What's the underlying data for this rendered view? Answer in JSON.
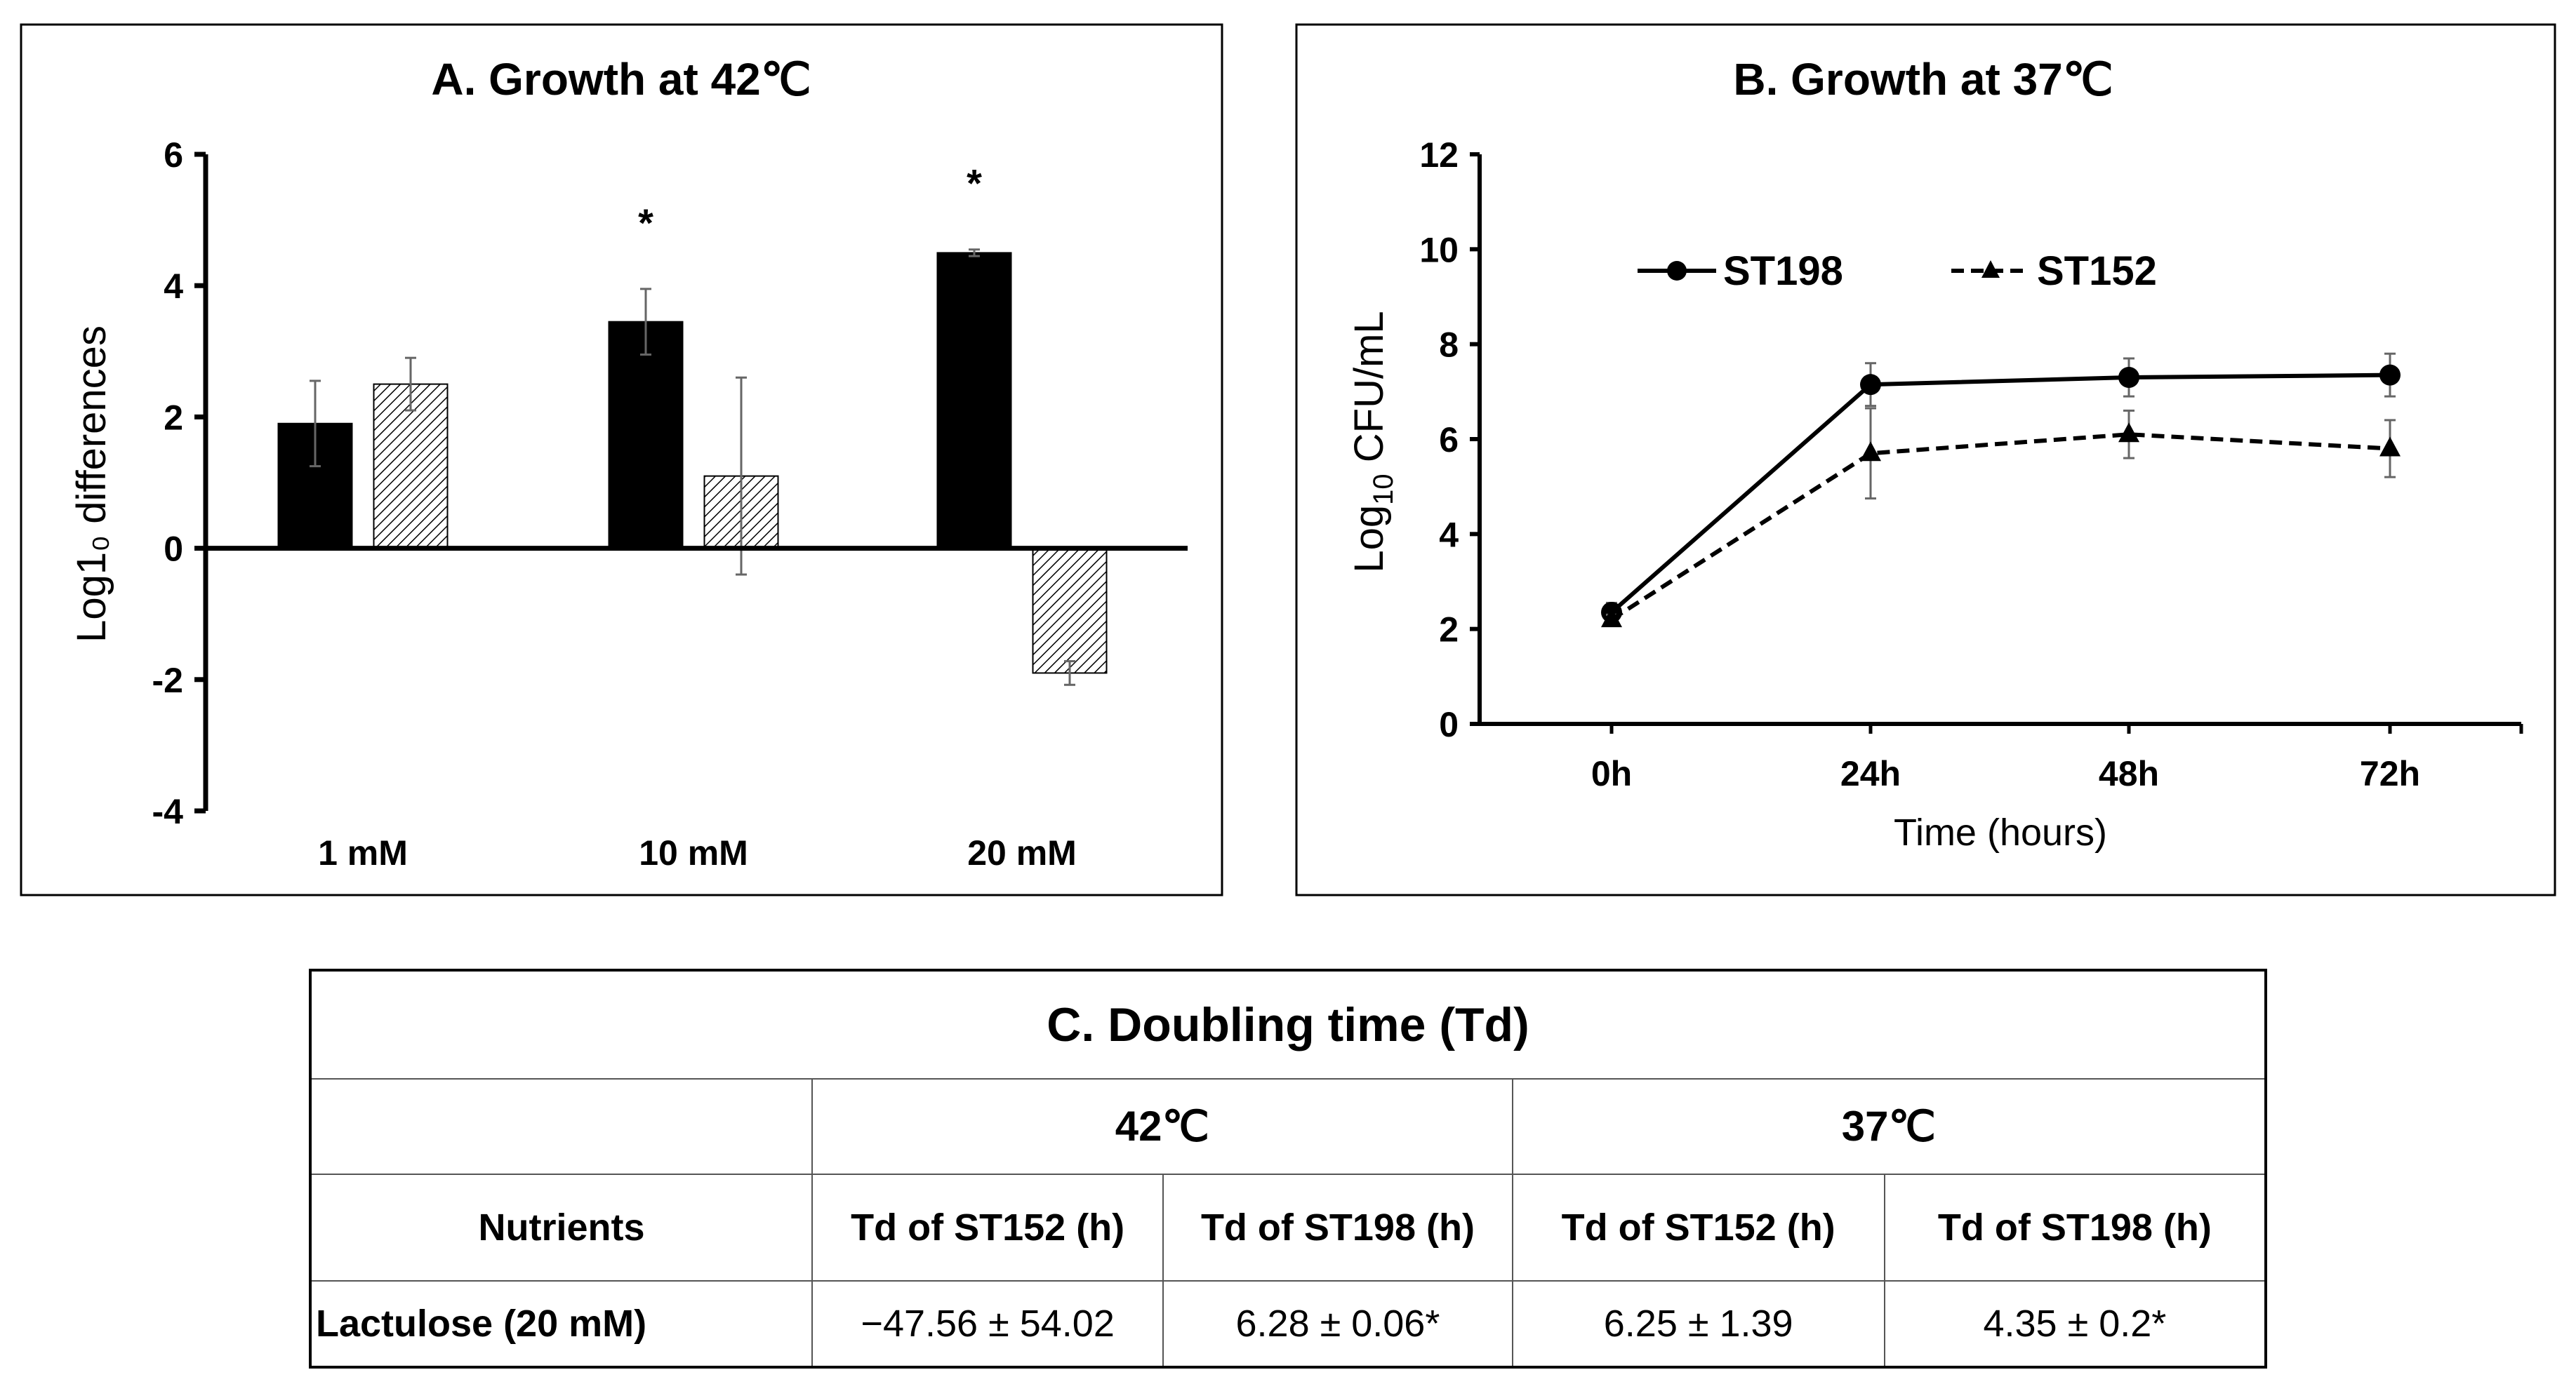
{
  "chart_data": [
    {
      "type": "bar",
      "title": "A. Growth at 42℃",
      "ylabel": "Log1₀ differences",
      "xlabel": "",
      "ylim": [
        -4,
        6
      ],
      "yticks": [
        "6",
        "4",
        "2",
        "0",
        "-2",
        "-4"
      ],
      "categories": [
        "1 mM",
        "10 mM",
        "20 mM"
      ],
      "series": [
        {
          "name": "ST198",
          "fill": "solid",
          "values": [
            1.9,
            3.45,
            4.5
          ],
          "errors": [
            0.65,
            0.5,
            0.05
          ]
        },
        {
          "name": "ST152",
          "fill": "hatched",
          "values": [
            2.5,
            1.1,
            -1.9
          ],
          "errors": [
            0.4,
            1.5,
            0.18
          ]
        }
      ],
      "annotations": [
        {
          "category": "10 mM",
          "text": "*"
        },
        {
          "category": "20 mM",
          "text": "*"
        }
      ]
    },
    {
      "type": "line",
      "title": "B. Growth at 37℃",
      "ylabel_main": "Log",
      "ylabel_sub": "10",
      "ylabel_rest": " CFU/mL",
      "xlabel": "Time (hours)",
      "ylim": [
        0,
        12
      ],
      "yticks": [
        "0",
        "2",
        "4",
        "6",
        "8",
        "10",
        "12"
      ],
      "categories": [
        "0h",
        "24h",
        "48h",
        "72h"
      ],
      "legend_position": "top-left",
      "series": [
        {
          "name": "ST198",
          "style": "solid",
          "marker": "circle",
          "values": [
            2.35,
            7.15,
            7.3,
            7.35
          ],
          "errors": [
            0.2,
            0.45,
            0.4,
            0.45
          ]
        },
        {
          "name": "ST152",
          "style": "dashed",
          "marker": "triangle",
          "values": [
            2.2,
            5.7,
            6.1,
            5.8
          ],
          "errors": [
            0.1,
            0.95,
            0.5,
            0.6
          ]
        }
      ]
    }
  ],
  "table": {
    "title": "C. Doubling time (Td)",
    "temps": [
      "42℃",
      "37℃"
    ],
    "headers": [
      "Nutrients",
      "Td of ST152 (h)",
      "Td of ST198 (h)",
      "Td of ST152 (h)",
      "Td of ST198 (h)"
    ],
    "rows": [
      [
        "Lactulose (20 mM)",
        "−47.56 ± 54.02",
        "6.28 ± 0.06*",
        "6.25 ± 1.39",
        "4.35 ± 0.2*"
      ]
    ]
  }
}
